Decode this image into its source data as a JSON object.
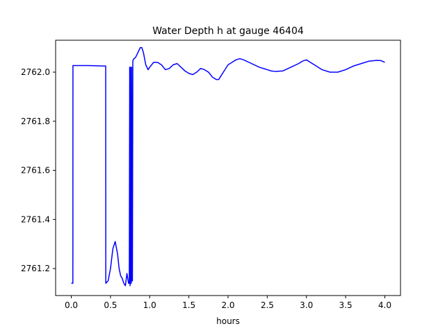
{
  "chart_data": {
    "type": "line",
    "title": "Water Depth h at gauge 46404",
    "xlabel": "hours",
    "ylabel": "",
    "xlim": [
      -0.2,
      4.2
    ],
    "ylim": [
      2761.09,
      2762.13
    ],
    "xticks": [
      0.0,
      0.5,
      1.0,
      1.5,
      2.0,
      2.5,
      3.0,
      3.5,
      4.0
    ],
    "xtick_labels": [
      "0.0",
      "0.5",
      "1.0",
      "1.5",
      "2.0",
      "2.5",
      "3.0",
      "3.5",
      "4.0"
    ],
    "yticks": [
      2761.2,
      2761.4,
      2761.6,
      2761.8,
      2762.0
    ],
    "ytick_labels": [
      "2761.2",
      "2761.4",
      "2761.6",
      "2761.8",
      "2762.0"
    ],
    "grid": false,
    "series": [
      {
        "color": "#0000ff",
        "x": [
          0.0,
          0.02,
          0.021,
          0.1,
          0.2,
          0.3,
          0.4,
          0.439,
          0.44,
          0.47,
          0.5,
          0.53,
          0.56,
          0.59,
          0.61,
          0.63,
          0.65,
          0.67,
          0.69,
          0.71,
          0.73,
          0.74,
          0.745,
          0.75,
          0.755,
          0.76,
          0.765,
          0.77,
          0.775,
          0.78,
          0.785,
          0.79,
          0.8,
          0.82,
          0.85,
          0.88,
          0.9,
          0.92,
          0.95,
          0.98,
          1.0,
          1.05,
          1.1,
          1.15,
          1.2,
          1.25,
          1.3,
          1.35,
          1.4,
          1.45,
          1.5,
          1.55,
          1.6,
          1.65,
          1.7,
          1.75,
          1.8,
          1.85,
          1.88,
          1.9,
          1.95,
          2.0,
          2.05,
          2.1,
          2.15,
          2.2,
          2.3,
          2.4,
          2.5,
          2.55,
          2.6,
          2.7,
          2.8,
          2.9,
          2.95,
          3.0,
          3.05,
          3.1,
          3.2,
          3.3,
          3.4,
          3.5,
          3.6,
          3.7,
          3.8,
          3.9,
          3.95,
          4.0
        ],
        "values": [
          2761.14,
          2761.14,
          2762.027,
          2762.027,
          2762.027,
          2762.026,
          2762.025,
          2762.025,
          2761.14,
          2761.15,
          2761.2,
          2761.28,
          2761.31,
          2761.26,
          2761.2,
          2761.17,
          2761.16,
          2761.14,
          2761.13,
          2761.18,
          2761.14,
          2761.14,
          2762.02,
          2761.13,
          2762.02,
          2761.14,
          2761.14,
          2762.02,
          2761.15,
          2761.15,
          2762.045,
          2762.05,
          2762.055,
          2762.06,
          2762.08,
          2762.1,
          2762.1,
          2762.08,
          2762.03,
          2762.01,
          2762.02,
          2762.04,
          2762.04,
          2762.03,
          2762.01,
          2762.015,
          2762.03,
          2762.035,
          2762.02,
          2762.005,
          2761.995,
          2761.99,
          2762.0,
          2762.015,
          2762.01,
          2762.0,
          2761.98,
          2761.97,
          2761.97,
          2761.98,
          2762.005,
          2762.03,
          2762.04,
          2762.05,
          2762.055,
          2762.05,
          2762.035,
          2762.02,
          2762.01,
          2762.005,
          2762.003,
          2762.005,
          2762.02,
          2762.035,
          2762.045,
          2762.05,
          2762.04,
          2762.03,
          2762.01,
          2762.0,
          2762.0,
          2762.01,
          2762.025,
          2762.035,
          2762.045,
          2762.048,
          2762.047,
          2762.04
        ]
      }
    ]
  }
}
